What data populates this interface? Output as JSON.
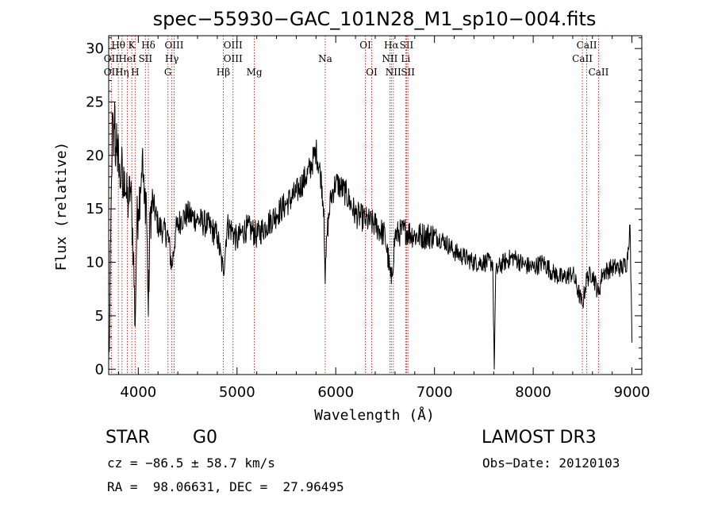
{
  "chart_data": {
    "type": "line",
    "title": "spec−55930−GAC_101N28_M1_sp10−004.fits",
    "xlabel": "Wavelength (Å)",
    "ylabel": "Flux (relative)",
    "xlim": [
      3700,
      9100
    ],
    "ylim": [
      -0.5,
      31.2
    ],
    "x_ticks": [
      4000,
      5000,
      6000,
      7000,
      8000,
      9000
    ],
    "y_ticks": [
      0,
      5,
      10,
      15,
      20,
      25,
      30
    ],
    "series": [
      {
        "name": "flux",
        "x": [
          3700,
          3710,
          3720,
          3730,
          3740,
          3750,
          3760,
          3770,
          3780,
          3790,
          3800,
          3815,
          3830,
          3845,
          3860,
          3880,
          3900,
          3920,
          3935,
          3950,
          3968,
          3985,
          4000,
          4020,
          4040,
          4060,
          4080,
          4102,
          4120,
          4150,
          4200,
          4250,
          4300,
          4340,
          4380,
          4430,
          4500,
          4600,
          4700,
          4800,
          4861,
          4900,
          4950,
          5000,
          5050,
          5100,
          5150,
          5200,
          5300,
          5400,
          5500,
          5600,
          5700,
          5750,
          5800,
          5850,
          5880,
          5893,
          5910,
          5950,
          6000,
          6100,
          6200,
          6300,
          6400,
          6500,
          6563,
          6600,
          6700,
          6800,
          6900,
          7000,
          7100,
          7200,
          7300,
          7400,
          7500,
          7590,
          7605,
          7620,
          7650,
          7700,
          7800,
          7900,
          8000,
          8100,
          8200,
          8300,
          8400,
          8498,
          8542,
          8600,
          8662,
          8700,
          8800,
          8900,
          8950,
          8980,
          9000
        ],
        "y": [
          1.0,
          3.5,
          12.0,
          18.0,
          24.0,
          20.0,
          25.0,
          19.0,
          23.0,
          18.5,
          21.0,
          17.0,
          19.5,
          16.0,
          18.5,
          16.0,
          15.5,
          17.0,
          14.5,
          11.0,
          4.0,
          13.5,
          15.0,
          17.0,
          20.0,
          15.5,
          16.5,
          5.0,
          14.5,
          15.5,
          13.5,
          13.0,
          12.5,
          9.5,
          13.0,
          14.0,
          14.5,
          14.0,
          13.5,
          12.5,
          9.0,
          13.5,
          13.0,
          12.0,
          12.8,
          13.2,
          13.0,
          12.5,
          13.5,
          14.5,
          15.5,
          16.5,
          18.0,
          19.0,
          20.5,
          18.0,
          15.0,
          8.0,
          12.5,
          16.0,
          17.5,
          16.5,
          14.5,
          14.0,
          13.5,
          12.5,
          8.0,
          12.5,
          13.0,
          12.5,
          12.5,
          12.5,
          12.0,
          11.0,
          10.5,
          10.0,
          10.0,
          10.0,
          0.0,
          9.0,
          9.5,
          10.0,
          10.5,
          9.8,
          9.5,
          10.0,
          9.0,
          8.5,
          9.0,
          6.0,
          8.5,
          9.0,
          7.0,
          9.0,
          9.5,
          9.5,
          10.0,
          13.5,
          2.5
        ]
      }
    ],
    "spectral_lines": [
      {
        "label": "Hθ",
        "x": 3798,
        "row": 0
      },
      {
        "label": "K",
        "x": 3934,
        "row": 0
      },
      {
        "label": "Hδ",
        "x": 4102,
        "row": 0
      },
      {
        "label": "OIII",
        "x": 4363,
        "row": 0
      },
      {
        "label": "OIII",
        "x": 4959,
        "row": 0
      },
      {
        "label": "OI",
        "x": 6300,
        "row": 0
      },
      {
        "label": "Hα",
        "x": 6563,
        "row": 0
      },
      {
        "label": "SII",
        "x": 6717,
        "row": 0
      },
      {
        "label": "CaII",
        "x": 8542,
        "row": 0
      },
      {
        "label": "OII",
        "x": 3727,
        "row": 1
      },
      {
        "label": "HeI",
        "x": 3889,
        "row": 1
      },
      {
        "label": "SII",
        "x": 4072,
        "row": 1
      },
      {
        "label": "Hγ",
        "x": 4340,
        "row": 1
      },
      {
        "label": "OIII",
        "x": 4959,
        "row": 1
      },
      {
        "label": "Na",
        "x": 5893,
        "row": 1
      },
      {
        "label": "NII",
        "x": 6548,
        "row": 1
      },
      {
        "label": "Li",
        "x": 6708,
        "row": 1
      },
      {
        "label": "CaII",
        "x": 8498,
        "row": 1
      },
      {
        "label": "OII",
        "x": 3727,
        "row": 2
      },
      {
        "label": "Hη",
        "x": 3835,
        "row": 2
      },
      {
        "label": "H",
        "x": 3968,
        "row": 2
      },
      {
        "label": "G",
        "x": 4300,
        "row": 2
      },
      {
        "label": "Hβ",
        "x": 4861,
        "row": 2
      },
      {
        "label": "Mg",
        "x": 5175,
        "row": 2
      },
      {
        "label": "OI",
        "x": 6364,
        "row": 2
      },
      {
        "label": "NII",
        "x": 6583,
        "row": 2
      },
      {
        "label": "SII",
        "x": 6731,
        "row": 2
      },
      {
        "label": "CaII",
        "x": 8662,
        "row": 2
      }
    ]
  },
  "info": {
    "object_class": "STAR",
    "subclass": "G0",
    "survey": "LAMOST DR3",
    "cz": "cz = −86.5 ± 58.7 km/s",
    "obs_date": "Obs−Date: 20120103",
    "radec": "RA =  98.06631, DEC =  27.96495"
  }
}
